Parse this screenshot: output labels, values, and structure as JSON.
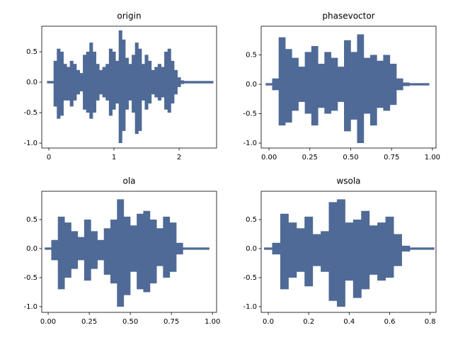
{
  "chart_data": [
    {
      "type": "waveform",
      "title": "origin",
      "color": "#4f6a96",
      "x": [
        0,
        0.05,
        0.1,
        0.15,
        0.2,
        0.25,
        0.3,
        0.35,
        0.4,
        0.45,
        0.5,
        0.55,
        0.6,
        0.65,
        0.7,
        0.75,
        0.8,
        0.85,
        0.9,
        0.95,
        1.0,
        1.05,
        1.1,
        1.15,
        1.2,
        1.25,
        1.3,
        1.35,
        1.4,
        1.45,
        1.5,
        1.55,
        1.6,
        1.65,
        1.7,
        1.75,
        1.8,
        1.85,
        1.9,
        1.95,
        2.0,
        2.05,
        2.1,
        2.15,
        2.2,
        2.25,
        2.3,
        2.35,
        2.4,
        2.45,
        2.5
      ],
      "upper": [
        0.02,
        0.02,
        0.35,
        0.55,
        0.5,
        0.3,
        0.25,
        0.35,
        0.3,
        0.2,
        0.15,
        0.45,
        0.5,
        0.65,
        0.5,
        0.3,
        0.2,
        0.25,
        0.3,
        0.55,
        0.5,
        0.35,
        0.85,
        0.7,
        0.4,
        0.3,
        0.45,
        0.65,
        0.55,
        0.3,
        0.45,
        0.35,
        0.2,
        0.25,
        0.3,
        0.25,
        0.5,
        0.55,
        0.35,
        0.2,
        0.08,
        0.03,
        0.02,
        0.02,
        0.02,
        0.02,
        0.02,
        0.02,
        0.02,
        0.02,
        0.02
      ],
      "lower": [
        -0.02,
        -0.02,
        -0.4,
        -0.6,
        -0.55,
        -0.3,
        -0.3,
        -0.4,
        -0.3,
        -0.2,
        -0.15,
        -0.45,
        -0.5,
        -0.6,
        -0.5,
        -0.3,
        -0.2,
        -0.25,
        -0.3,
        -0.55,
        -0.45,
        -0.35,
        -1.0,
        -0.8,
        -0.45,
        -0.3,
        -0.5,
        -0.85,
        -0.8,
        -0.3,
        -0.45,
        -0.35,
        -0.2,
        -0.25,
        -0.3,
        -0.25,
        -0.45,
        -0.5,
        -0.35,
        -0.2,
        -0.08,
        -0.03,
        -0.02,
        -0.02,
        -0.02,
        -0.02,
        -0.02,
        -0.02,
        -0.02,
        -0.02,
        -0.02
      ],
      "xlim": [
        -0.109,
        2.576
      ],
      "ylim": [
        -1.081,
        0.919
      ],
      "xticks": [
        0,
        1,
        2
      ],
      "yticks": [
        {
          "value": -1,
          "label": "-1.0"
        },
        -0.5,
        {
          "value": 0,
          "label": "0.0"
        },
        0.5
      ]
    },
    {
      "type": "waveform",
      "title": "phasevoctor",
      "color": "#4f6a96",
      "x": [
        0,
        0.04,
        0.08,
        0.12,
        0.16,
        0.2,
        0.24,
        0.28,
        0.32,
        0.36,
        0.4,
        0.44,
        0.48,
        0.52,
        0.56,
        0.6,
        0.64,
        0.68,
        0.72,
        0.76,
        0.8,
        0.84,
        0.88,
        0.92,
        0.96
      ],
      "upper": [
        0.02,
        0.1,
        0.8,
        0.6,
        0.45,
        0.3,
        0.55,
        0.65,
        0.35,
        0.55,
        0.45,
        0.3,
        0.75,
        0.55,
        0.85,
        0.45,
        0.5,
        0.4,
        0.5,
        0.35,
        0.1,
        0.03,
        0.02,
        0.02,
        0.02
      ],
      "lower": [
        -0.02,
        -0.1,
        -0.7,
        -0.65,
        -0.45,
        -0.3,
        -0.5,
        -0.7,
        -0.4,
        -0.5,
        -0.45,
        -0.3,
        -0.8,
        -0.6,
        -1.0,
        -0.5,
        -0.7,
        -0.4,
        -0.45,
        -0.35,
        -0.1,
        -0.03,
        -0.02,
        -0.02,
        -0.02
      ],
      "xlim": [
        -0.048,
        1.022
      ],
      "ylim": [
        -1.084,
        0.988
      ],
      "xticks": [
        {
          "value": 0,
          "label": "0.00"
        },
        {
          "value": 0.25,
          "label": "0.25"
        },
        {
          "value": 0.5,
          "label": "0.50"
        },
        {
          "value": 0.75,
          "label": "0.75"
        },
        {
          "value": 1,
          "label": "1.00"
        }
      ],
      "yticks": [
        {
          "value": -1,
          "label": "-1.0"
        },
        -0.5,
        {
          "value": 0,
          "label": "0.0"
        },
        0.5
      ]
    },
    {
      "type": "waveform",
      "title": "ola",
      "color": "#4f6a96",
      "x": [
        0,
        0.04,
        0.08,
        0.12,
        0.16,
        0.2,
        0.24,
        0.28,
        0.32,
        0.36,
        0.4,
        0.44,
        0.48,
        0.52,
        0.56,
        0.6,
        0.64,
        0.68,
        0.72,
        0.76,
        0.8,
        0.84,
        0.88,
        0.92,
        0.96
      ],
      "upper": [
        0.02,
        0.15,
        0.55,
        0.45,
        0.3,
        0.2,
        0.5,
        0.3,
        0.15,
        0.35,
        0.5,
        0.85,
        0.55,
        0.4,
        0.6,
        0.65,
        0.5,
        0.35,
        0.55,
        0.45,
        0.1,
        0.02,
        0.02,
        0.02,
        0.02
      ],
      "lower": [
        -0.02,
        -0.2,
        -0.7,
        -0.5,
        -0.35,
        -0.2,
        -0.55,
        -0.35,
        -0.2,
        -0.45,
        -0.6,
        -1.0,
        -0.8,
        -0.4,
        -0.7,
        -0.75,
        -0.6,
        -0.3,
        -0.5,
        -0.4,
        -0.1,
        -0.02,
        -0.02,
        -0.02,
        -0.02
      ],
      "xlim": [
        -0.039,
        1.025
      ],
      "ylim": [
        -1.098,
        0.988
      ],
      "xticks": [
        {
          "value": 0,
          "label": "0.00"
        },
        {
          "value": 0.25,
          "label": "0.25"
        },
        {
          "value": 0.5,
          "label": "0.50"
        },
        {
          "value": 0.75,
          "label": "0.75"
        },
        {
          "value": 1,
          "label": "1.00"
        }
      ],
      "yticks": [
        {
          "value": -1,
          "label": "-1.0"
        },
        -0.5,
        {
          "value": 0,
          "label": "0.0"
        },
        0.5
      ]
    },
    {
      "type": "waveform",
      "title": "wsola",
      "color": "#4f6a96",
      "x": [
        0,
        0.04,
        0.08,
        0.12,
        0.16,
        0.2,
        0.24,
        0.28,
        0.32,
        0.36,
        0.4,
        0.44,
        0.48,
        0.52,
        0.56,
        0.6,
        0.64,
        0.68,
        0.72,
        0.76,
        0.8
      ],
      "upper": [
        0.02,
        0.1,
        0.6,
        0.45,
        0.35,
        0.55,
        0.25,
        0.3,
        0.8,
        0.85,
        0.45,
        0.5,
        0.65,
        0.4,
        0.45,
        0.55,
        0.25,
        0.05,
        0.02,
        0.02,
        0.02
      ],
      "lower": [
        -0.02,
        -0.1,
        -0.7,
        -0.5,
        -0.4,
        -0.65,
        -0.3,
        -0.4,
        -0.9,
        -1.0,
        -0.55,
        -0.85,
        -0.7,
        -0.45,
        -0.55,
        -0.5,
        -0.3,
        -0.05,
        -0.02,
        -0.02,
        -0.02
      ],
      "xlim": [
        -0.035,
        0.829
      ],
      "ylim": [
        -1.098,
        0.988
      ],
      "xticks": [
        {
          "value": 0,
          "label": "0.0"
        },
        0.2,
        0.4,
        0.6,
        0.8
      ],
      "yticks": [
        {
          "value": -1,
          "label": "-1.0"
        },
        -0.5,
        {
          "value": 0,
          "label": "0.0"
        },
        0.5
      ]
    }
  ]
}
